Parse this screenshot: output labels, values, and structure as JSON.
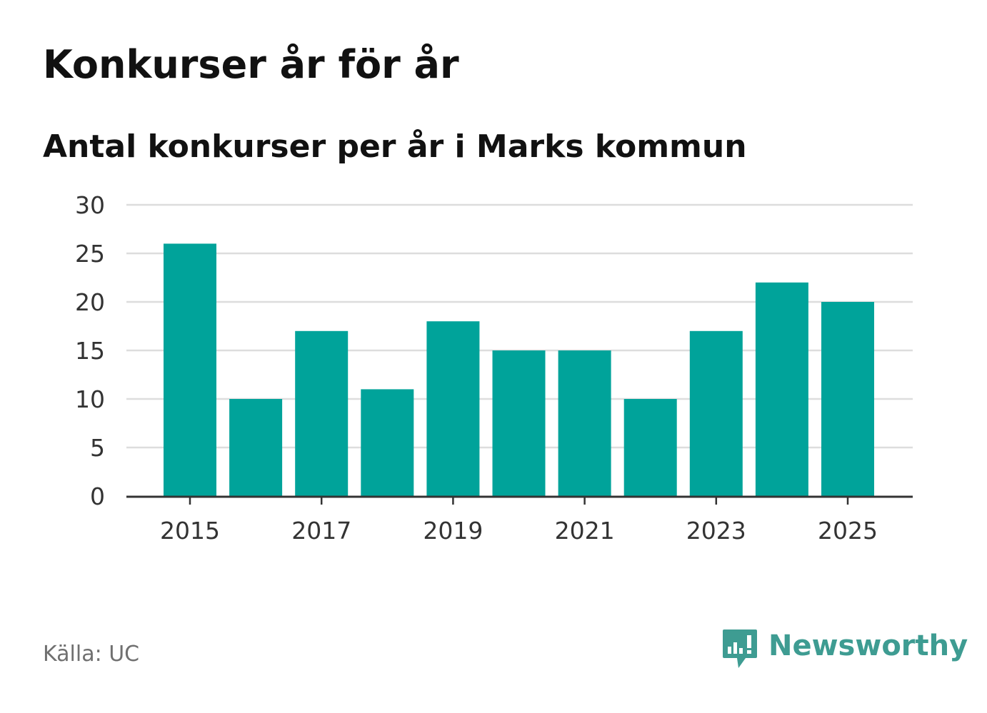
{
  "header": {
    "title": "Konkurser år för år",
    "subtitle": "Antal konkurser per år i Marks kommun"
  },
  "footer": {
    "source": "Källa: UC",
    "logo_name": "Newsworthy"
  },
  "colors": {
    "bar": "#00a39a",
    "grid": "#dddddd",
    "axis": "#333333",
    "logo": "#3e9c92"
  },
  "chart_data": {
    "type": "bar",
    "title": "Konkurser år för år",
    "subtitle": "Antal konkurser per år i Marks kommun",
    "xlabel": "",
    "ylabel": "",
    "categories": [
      "2015",
      "2016",
      "2017",
      "2018",
      "2019",
      "2020",
      "2021",
      "2022",
      "2023",
      "2024",
      "2025"
    ],
    "values": [
      26,
      10,
      17,
      11,
      18,
      15,
      15,
      10,
      17,
      22,
      20
    ],
    "x_tick_labels": [
      "2015",
      "2017",
      "2019",
      "2021",
      "2023",
      "2025"
    ],
    "y_ticks": [
      0,
      5,
      10,
      15,
      20,
      25,
      30
    ],
    "ylim": [
      0,
      30
    ],
    "grid": true,
    "legend": "none"
  }
}
